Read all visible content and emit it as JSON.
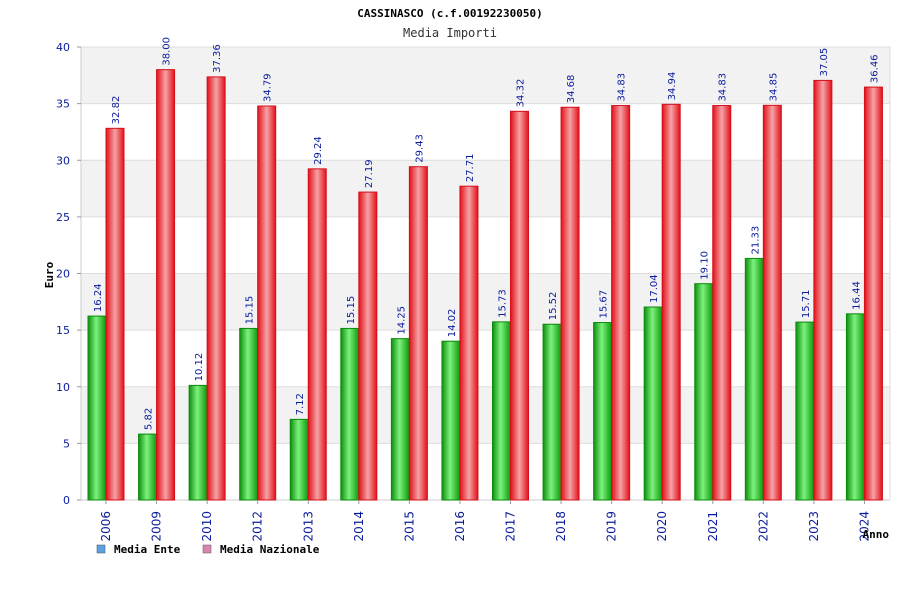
{
  "chart_data": {
    "type": "bar",
    "title": "CASSINASCO (c.f.00192230050)",
    "subtitle": "Media Importi",
    "xlabel": "Anno",
    "ylabel": "Euro",
    "ylim": [
      0,
      40
    ],
    "yticks": [
      0,
      5,
      10,
      15,
      20,
      25,
      30,
      35,
      40
    ],
    "grid": true,
    "legend_position": "bottom-left",
    "categories": [
      "2006",
      "2009",
      "2010",
      "2012",
      "2013",
      "2014",
      "2015",
      "2016",
      "2017",
      "2018",
      "2019",
      "2020",
      "2021",
      "2022",
      "2023",
      "2024"
    ],
    "series": [
      {
        "name": "Media Ente",
        "color": "#11b811",
        "legend_color": "#5aa0e6",
        "values": [
          16.24,
          5.82,
          10.12,
          15.15,
          7.12,
          15.15,
          14.25,
          14.02,
          15.73,
          15.52,
          15.67,
          17.04,
          19.1,
          21.33,
          15.71,
          16.44
        ],
        "labels": [
          "16.24",
          "5.82",
          "10.12",
          "15.15",
          "7.12",
          "15.15",
          "14.25",
          "14.02",
          "15.73",
          "15.52",
          "15.67",
          "17.04",
          "19.10",
          "21.33",
          "15.71",
          "16.44"
        ]
      },
      {
        "name": "Media Nazionale",
        "color": "#e8131b",
        "legend_color": "#d986b0",
        "values": [
          32.82,
          38.0,
          37.36,
          34.79,
          29.24,
          27.19,
          29.43,
          27.71,
          34.32,
          34.68,
          34.83,
          34.94,
          34.83,
          34.85,
          37.05,
          36.46
        ],
        "labels": [
          "32.82",
          "38.00",
          "37.36",
          "34.79",
          "29.24",
          "27.19",
          "29.43",
          "27.71",
          "34.32",
          "34.68",
          "34.83",
          "34.94",
          "34.83",
          "34.85",
          "37.05",
          "36.46"
        ]
      }
    ]
  }
}
